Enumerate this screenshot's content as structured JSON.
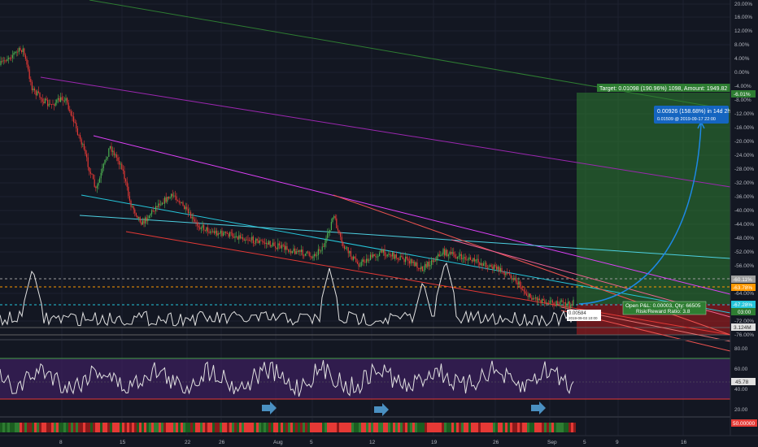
{
  "price_axis": {
    "labels": [
      "20.00%",
      "16.00%",
      "12.00%",
      "8.00%",
      "4.00%",
      "0.00%",
      "-4.00%",
      "-8.00%",
      "-12.00%",
      "-16.00%",
      "-20.00%",
      "-24.00%",
      "-28.00%",
      "-32.00%",
      "-36.00%",
      "-40.00%",
      "-44.00%",
      "-48.00%",
      "-52.00%",
      "-56.00%",
      "-64.00%",
      "-72.00%",
      "-76.00%"
    ]
  },
  "price_badges": {
    "target_pct": "-6.01%",
    "level_1": "-60.11%",
    "level_2": "-63.78%",
    "level_3": "-67.28%",
    "countdown": "03:00",
    "volume": "3.124M"
  },
  "target_label": "Target: 0.01098 (190.96%) 1098, Amount: 1949.82",
  "projection_tooltip": {
    "line1": "0.00926 (158.68%) in 14d 2h",
    "line2": "0.01509  @ 2019-09-17  22:00"
  },
  "position_label": {
    "line1": "Open P&L: 0.00003, Qty: 66505",
    "line2": "Risk/Reward Ratio: 3.8"
  },
  "low_tooltip": {
    "line1": "0.00584",
    "line2": "2019-09-03 10:00"
  },
  "rsi_axis": {
    "labels": [
      "80.00",
      "60.00",
      "40.00",
      "20.00"
    ],
    "value": "45.78"
  },
  "bottom_axis": {
    "value": "50.00000"
  },
  "time_axis": {
    "labels": [
      "8",
      "15",
      "22",
      "26",
      "Aug",
      "5",
      "12",
      "19",
      "26",
      "Sep",
      "5",
      "9",
      "16"
    ]
  },
  "colors": {
    "background": "#131722",
    "candle_up": "#4caf50",
    "candle_down": "#e53935",
    "profit_zone": "#2e7d32",
    "loss_zone": "#b71c1c",
    "rsi_band": "#3b1f5c",
    "accent_blue": "#1e88e5",
    "fib_orange": "#ff9800"
  }
}
